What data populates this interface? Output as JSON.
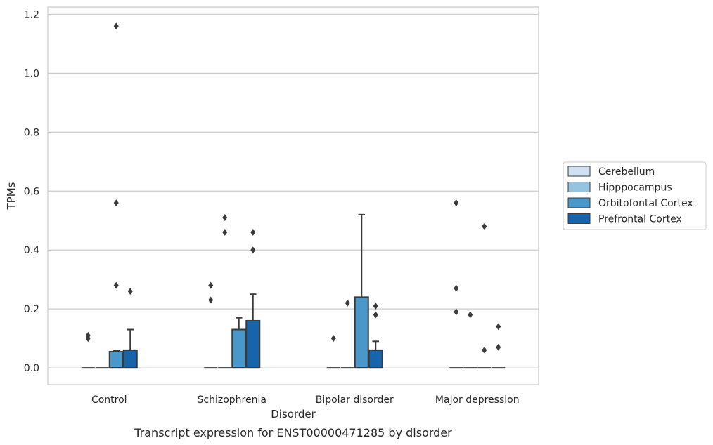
{
  "chart_data": {
    "type": "box",
    "caption": "Transcript expression for ENST00000471285 by disorder",
    "xlabel": "Disorder",
    "ylabel": "TPMs",
    "ylim": [
      -0.057,
      1.225
    ],
    "yticks": [
      0.0,
      0.2,
      0.4,
      0.6,
      0.8,
      1.0,
      1.2
    ],
    "ytick_labels": [
      "0.0",
      "0.2",
      "0.4",
      "0.6",
      "0.8",
      "1.0",
      "1.2"
    ],
    "grid": "y",
    "legend_position": "right-outside",
    "categories": [
      "Control",
      "Schizophrenia",
      "Bipolar disorder",
      "Major depression"
    ],
    "series": [
      {
        "name": "Cerebellum",
        "color": "#d0e1f2",
        "boxes": [
          {
            "q1": 0,
            "median": 0,
            "q3": 0,
            "whislo": 0,
            "whishi": 0,
            "fliers": [
              0.1,
              0.11
            ]
          },
          {
            "q1": 0,
            "median": 0,
            "q3": 0,
            "whislo": 0,
            "whishi": 0,
            "fliers": [
              0.23,
              0.28
            ]
          },
          {
            "q1": 0,
            "median": 0,
            "q3": 0,
            "whislo": 0,
            "whishi": 0,
            "fliers": [
              0.1
            ]
          },
          {
            "q1": 0,
            "median": 0,
            "q3": 0,
            "whislo": 0,
            "whishi": 0,
            "fliers": [
              0.19,
              0.27,
              0.56
            ]
          }
        ]
      },
      {
        "name": "Hipppocampus",
        "color": "#94c4df",
        "boxes": [
          {
            "q1": 0,
            "median": 0,
            "q3": 0,
            "whislo": 0,
            "whishi": 0,
            "fliers": []
          },
          {
            "q1": 0,
            "median": 0,
            "q3": 0,
            "whislo": 0,
            "whishi": 0,
            "fliers": [
              0.46,
              0.51
            ]
          },
          {
            "q1": 0,
            "median": 0,
            "q3": 0,
            "whislo": 0,
            "whishi": 0,
            "fliers": [
              0.22
            ]
          },
          {
            "q1": 0,
            "median": 0,
            "q3": 0,
            "whislo": 0,
            "whishi": 0,
            "fliers": [
              0.18
            ]
          }
        ]
      },
      {
        "name": "Orbitofontal Cortex",
        "color": "#4a98c9",
        "boxes": [
          {
            "q1": 0,
            "median": 0,
            "q3": 0.055,
            "whislo": 0,
            "whishi": 0.058,
            "fliers": [
              0.28,
              0.56,
              1.16
            ]
          },
          {
            "q1": 0,
            "median": 0,
            "q3": 0.13,
            "whislo": 0,
            "whishi": 0.17,
            "fliers": []
          },
          {
            "q1": 0,
            "median": 0,
            "q3": 0.24,
            "whislo": 0,
            "whishi": 0.52,
            "fliers": []
          },
          {
            "q1": 0,
            "median": 0,
            "q3": 0,
            "whislo": 0,
            "whishi": 0,
            "fliers": [
              0.06,
              0.48
            ]
          }
        ]
      },
      {
        "name": "Prefrontal Cortex",
        "color": "#1764ab",
        "boxes": [
          {
            "q1": 0,
            "median": 0,
            "q3": 0.06,
            "whislo": 0,
            "whishi": 0.13,
            "fliers": [
              0.26
            ]
          },
          {
            "q1": 0,
            "median": 0,
            "q3": 0.16,
            "whislo": 0,
            "whishi": 0.25,
            "fliers": [
              0.4,
              0.46
            ]
          },
          {
            "q1": 0,
            "median": 0,
            "q3": 0.06,
            "whislo": 0,
            "whishi": 0.09,
            "fliers": [
              0.18,
              0.21
            ]
          },
          {
            "q1": 0,
            "median": 0,
            "q3": 0,
            "whislo": 0,
            "whishi": 0,
            "fliers": [
              0.07,
              0.14
            ]
          }
        ]
      }
    ]
  }
}
